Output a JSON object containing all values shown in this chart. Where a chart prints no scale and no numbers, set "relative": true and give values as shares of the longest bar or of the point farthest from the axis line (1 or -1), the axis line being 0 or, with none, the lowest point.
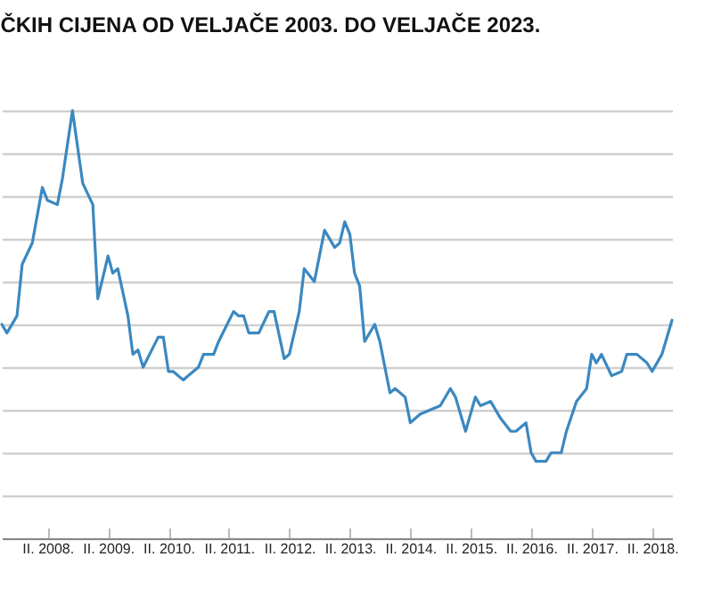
{
  "chart_data": {
    "type": "line",
    "title": "ČKIH CIJENA OD VELJAČE 2003. DO VELJAČE 2023.",
    "relative": true,
    "grid": "y",
    "x": [
      "2007-05",
      "2007-06",
      "2007-08",
      "2007-09",
      "2007-11",
      "2008-01",
      "2008-02",
      "2008-04",
      "2008-05",
      "2008-07",
      "2008-09",
      "2008-11",
      "2008-12",
      "2009-02",
      "2009-03",
      "2009-04",
      "2009-06",
      "2009-07",
      "2009-08",
      "2009-09",
      "2009-12",
      "2010-01",
      "2010-02",
      "2010-03",
      "2010-05",
      "2010-06",
      "2010-08",
      "2010-09",
      "2010-11",
      "2010-12",
      "2011-03",
      "2011-04",
      "2011-05",
      "2011-06",
      "2011-08",
      "2011-10",
      "2011-11",
      "2012-01",
      "2012-02",
      "2012-04",
      "2012-05",
      "2012-07",
      "2012-09",
      "2012-11",
      "2012-12",
      "2013-01",
      "2013-02",
      "2013-03",
      "2013-04",
      "2013-05",
      "2013-07",
      "2013-08",
      "2013-10",
      "2013-11",
      "2014-01",
      "2014-02",
      "2014-04",
      "2014-06",
      "2014-08",
      "2014-10",
      "2014-11",
      "2015-01",
      "2015-03",
      "2015-04",
      "2015-06",
      "2015-08",
      "2015-10",
      "2015-11",
      "2016-01",
      "2016-02",
      "2016-03",
      "2016-05",
      "2016-06",
      "2016-08",
      "2016-09",
      "2016-11",
      "2017-01",
      "2017-02",
      "2017-03",
      "2017-04",
      "2017-06",
      "2017-08",
      "2017-09",
      "2017-11",
      "2018-01",
      "2018-02",
      "2018-04",
      "2018-06"
    ],
    "series": [
      {
        "color": "#3b88c0",
        "values": [
          0.5,
          0.48,
          0.52,
          0.64,
          0.69,
          0.82,
          0.79,
          0.78,
          0.84,
          1,
          0.83,
          0.78,
          0.56,
          0.66,
          0.62,
          0.63,
          0.52,
          0.43,
          0.44,
          0.4,
          0.47,
          0.47,
          0.39,
          0.39,
          0.37,
          0.38,
          0.4,
          0.43,
          0.43,
          0.46,
          0.53,
          0.52,
          0.52,
          0.48,
          0.48,
          0.53,
          0.53,
          0.42,
          0.43,
          0.53,
          0.63,
          0.6,
          0.72,
          0.68,
          0.69,
          0.74,
          0.71,
          0.62,
          0.59,
          0.46,
          0.5,
          0.46,
          0.34,
          0.35,
          0.33,
          0.27,
          0.29,
          0.3,
          0.31,
          0.35,
          0.33,
          0.25,
          0.33,
          0.31,
          0.32,
          0.28,
          0.25,
          0.25,
          0.27,
          0.2,
          0.18,
          0.18,
          0.2,
          0.2,
          0.25,
          0.32,
          0.35,
          0.43,
          0.41,
          0.43,
          0.38,
          0.39,
          0.43,
          0.43,
          0.41,
          0.39,
          0.43,
          0.51
        ]
      }
    ],
    "xlim": [
      "2007-05",
      "2018-06"
    ],
    "xticks": [
      {
        "value": "2008-02",
        "label": "II. 2008."
      },
      {
        "value": "2009-02",
        "label": "II. 2009."
      },
      {
        "value": "2010-02",
        "label": "II. 2010."
      },
      {
        "value": "2011-02",
        "label": "II. 2011."
      },
      {
        "value": "2012-02",
        "label": "II. 2012."
      },
      {
        "value": "2013-02",
        "label": "II. 2013."
      },
      {
        "value": "2014-02",
        "label": "II. 2014."
      },
      {
        "value": "2015-02",
        "label": "II. 2015."
      },
      {
        "value": "2016-02",
        "label": "II. 2016."
      },
      {
        "value": "2017-02",
        "label": "II. 2017."
      },
      {
        "value": "2018-02",
        "label": "II. 2018."
      }
    ]
  }
}
